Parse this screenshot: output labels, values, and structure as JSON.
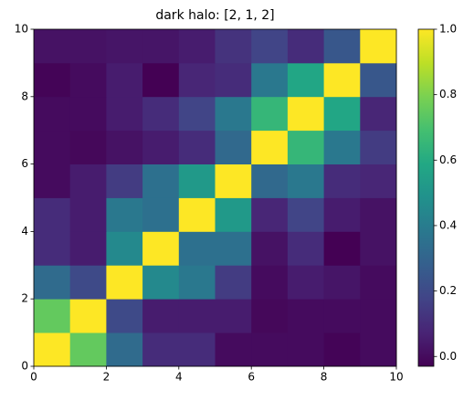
{
  "chart_data": {
    "type": "heatmap",
    "title": "dark halo: [2, 1, 2]",
    "colormap": "viridis",
    "xlim": [
      0,
      10
    ],
    "ylim": [
      0,
      10
    ],
    "xticks": [
      0,
      2,
      4,
      6,
      8,
      10
    ],
    "yticks": [
      0,
      2,
      4,
      6,
      8,
      10
    ],
    "values": [
      [
        1.0,
        0.75,
        0.33,
        0.1,
        0.1,
        0.0,
        0.0,
        0.0,
        -0.02,
        0.0
      ],
      [
        0.75,
        1.0,
        0.2,
        0.05,
        0.05,
        0.05,
        -0.01,
        0.0,
        0.0,
        0.0
      ],
      [
        0.33,
        0.2,
        1.0,
        0.45,
        0.38,
        0.15,
        0.0,
        0.05,
        0.03,
        0.0
      ],
      [
        0.1,
        0.05,
        0.45,
        1.0,
        0.35,
        0.35,
        0.02,
        0.1,
        -0.03,
        0.02
      ],
      [
        0.1,
        0.05,
        0.38,
        0.35,
        1.0,
        0.52,
        0.08,
        0.18,
        0.05,
        0.02
      ],
      [
        0.0,
        0.05,
        0.15,
        0.35,
        0.52,
        1.0,
        0.32,
        0.38,
        0.1,
        0.08
      ],
      [
        0.0,
        -0.01,
        0.02,
        0.05,
        0.1,
        0.32,
        1.0,
        0.65,
        0.38,
        0.15
      ],
      [
        0.0,
        0.0,
        0.05,
        0.1,
        0.18,
        0.38,
        0.65,
        1.0,
        0.58,
        0.08
      ],
      [
        -0.02,
        0.0,
        0.05,
        -0.03,
        0.08,
        0.1,
        0.38,
        0.58,
        1.0,
        0.25
      ],
      [
        0.02,
        0.02,
        0.03,
        0.03,
        0.05,
        0.12,
        0.18,
        0.1,
        0.25,
        1.0
      ]
    ],
    "clim": [
      -0.03,
      1.0
    ],
    "cticks": [
      {
        "value": 0,
        "label": "0.0"
      },
      0.2,
      0.4,
      0.6,
      0.8,
      {
        "value": 1,
        "label": "1.0"
      }
    ]
  }
}
